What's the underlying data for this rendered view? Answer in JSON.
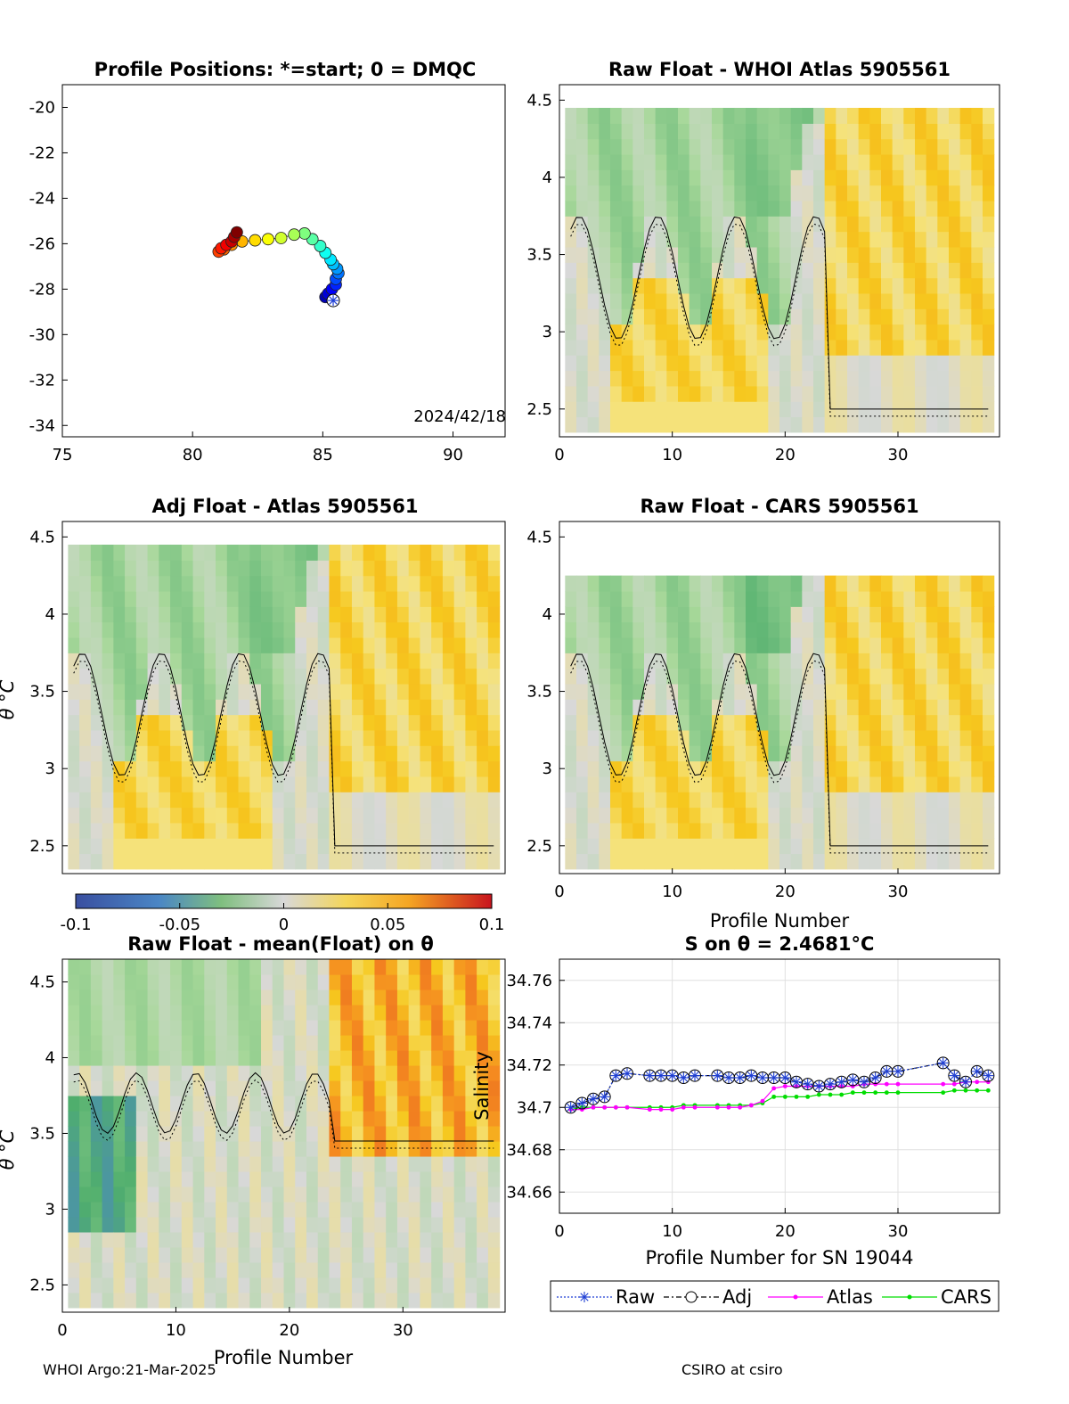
{
  "footer": {
    "left": "WHOI Argo:21-Mar-2025",
    "right": "CSIRO at csiro"
  },
  "chart_data": [
    {
      "type": "scatter",
      "title": "Profile Positions: *=start; 0 = DMQC",
      "annotation": "2024/42/18",
      "xlim": [
        75,
        92
      ],
      "ylim": [
        -34.5,
        -19
      ],
      "xticks": [
        "75",
        "80",
        "85",
        "90"
      ],
      "yticks": [
        "-20",
        "-22",
        "-24",
        "-26",
        "-28",
        "-30",
        "-32",
        "-34"
      ],
      "colormap": "jet",
      "start": [
        85.4,
        -28.5
      ],
      "lon": [
        85.4,
        85.1,
        85.2,
        85.35,
        85.5,
        85.5,
        85.6,
        85.55,
        85.4,
        85.3,
        85.1,
        84.9,
        84.6,
        84.3,
        83.9,
        83.4,
        82.9,
        82.4,
        81.9,
        81.5,
        81.2,
        81.0,
        81.1,
        81.3,
        81.5,
        81.6,
        81.7
      ],
      "lat": [
        -28.5,
        -28.35,
        -28.2,
        -28.0,
        -27.8,
        -27.55,
        -27.3,
        -27.1,
        -26.9,
        -26.7,
        -26.4,
        -26.1,
        -25.8,
        -25.55,
        -25.6,
        -25.75,
        -25.8,
        -25.85,
        -25.9,
        -26.05,
        -26.25,
        -26.35,
        -26.2,
        -26.05,
        -25.9,
        -25.7,
        -25.5
      ]
    },
    {
      "type": "heatmap",
      "title": "Raw Float - WHOI Atlas  5905561",
      "xlim": [
        0,
        39
      ],
      "ylim": [
        2.32,
        4.6
      ],
      "xticks": [
        "0",
        "10",
        "20",
        "30"
      ],
      "yticks": [
        "2.5",
        "3",
        "3.5",
        "4",
        "4.5"
      ],
      "variant": "whoi"
    },
    {
      "type": "heatmap",
      "title": "Adj Float - Atlas  5905561",
      "xlim": [
        0,
        39
      ],
      "ylim": [
        2.32,
        4.6
      ],
      "yticks": [
        "2.5",
        "3",
        "3.5",
        "4",
        "4.5"
      ],
      "ylabel": "θ °C",
      "variant": "adj",
      "colorbar": {
        "ticks": [
          "-0.1",
          "-0.05",
          "0",
          "0.05",
          "0.1"
        ],
        "range": [
          -0.1,
          0.1
        ]
      }
    },
    {
      "type": "heatmap",
      "title": "Raw Float - CARS  5905561",
      "xlim": [
        0,
        39
      ],
      "ylim": [
        2.32,
        4.6
      ],
      "xticks": [
        "0",
        "10",
        "20",
        "30"
      ],
      "yticks": [
        "2.5",
        "3",
        "3.5",
        "4",
        "4.5"
      ],
      "xlabel": "Profile Number",
      "variant": "cars"
    },
    {
      "type": "heatmap",
      "title": "Raw Float - mean(Float) on θ",
      "xlim": [
        0,
        39
      ],
      "ylim": [
        2.32,
        4.65
      ],
      "xticks": [
        "0",
        "10",
        "20",
        "30"
      ],
      "yticks": [
        "2.5",
        "3",
        "3.5",
        "4",
        "4.5"
      ],
      "xlabel": "Profile Number",
      "ylabel": "θ °C",
      "variant": "mean"
    },
    {
      "type": "line",
      "title": "S on θ = 2.4681°C",
      "xlabel": "Profile Number for SN 19044",
      "ylabel": "Salinity",
      "xlim": [
        0,
        39
      ],
      "ylim": [
        34.65,
        34.77
      ],
      "xticks": [
        "0",
        "10",
        "20",
        "30"
      ],
      "yticks": [
        "34.66",
        "34.68",
        "34.7",
        "34.72",
        "34.74",
        "34.76"
      ],
      "grid": true,
      "legend": [
        "Raw",
        "Adj",
        "Atlas",
        "CARS"
      ],
      "x": [
        1,
        2,
        3,
        4,
        5,
        6,
        8,
        9,
        10,
        11,
        12,
        14,
        15,
        16,
        17,
        18,
        19,
        20,
        21,
        22,
        23,
        24,
        25,
        26,
        27,
        28,
        29,
        30,
        34,
        35,
        36,
        37,
        38
      ],
      "series": [
        {
          "name": "Raw",
          "values": [
            34.7,
            34.702,
            34.704,
            34.705,
            34.715,
            34.716,
            34.715,
            34.715,
            34.715,
            34.714,
            34.715,
            34.715,
            34.714,
            34.714,
            34.715,
            34.714,
            34.714,
            34.714,
            34.712,
            34.711,
            34.71,
            34.711,
            34.712,
            34.713,
            34.712,
            34.714,
            34.717,
            34.717,
            34.721,
            34.715,
            34.712,
            34.717,
            34.715
          ]
        },
        {
          "name": "Adj",
          "values": [
            34.7,
            34.702,
            34.704,
            34.705,
            34.715,
            34.716,
            34.715,
            34.715,
            34.715,
            34.714,
            34.715,
            34.715,
            34.714,
            34.714,
            34.715,
            34.714,
            34.714,
            34.714,
            34.712,
            34.711,
            34.71,
            34.711,
            34.712,
            34.713,
            34.712,
            34.714,
            34.717,
            34.717,
            34.721,
            34.715,
            34.712,
            34.717,
            34.715
          ]
        },
        {
          "name": "Atlas",
          "values": [
            34.699,
            34.699,
            34.7,
            34.7,
            34.7,
            34.7,
            34.699,
            34.699,
            34.699,
            34.7,
            34.7,
            34.7,
            34.7,
            34.7,
            34.701,
            34.703,
            34.709,
            34.71,
            34.71,
            34.71,
            34.71,
            34.71,
            34.71,
            34.71,
            34.711,
            34.711,
            34.711,
            34.711,
            34.711,
            34.711,
            34.712,
            34.712,
            34.712
          ]
        },
        {
          "name": "CARS",
          "values": [
            34.699,
            34.7,
            34.7,
            34.7,
            34.7,
            34.7,
            34.7,
            34.7,
            34.7,
            34.701,
            34.701,
            34.701,
            34.701,
            34.701,
            34.701,
            34.702,
            34.705,
            34.705,
            34.705,
            34.705,
            34.706,
            34.706,
            34.706,
            34.707,
            34.707,
            34.707,
            34.707,
            34.707,
            34.707,
            34.708,
            34.708,
            34.708,
            34.708
          ]
        }
      ],
      "colors": {
        "Raw": "#1f3fd4",
        "Adj": "#000000",
        "Atlas": "#ff00ff",
        "CARS": "#00dd00"
      }
    }
  ]
}
